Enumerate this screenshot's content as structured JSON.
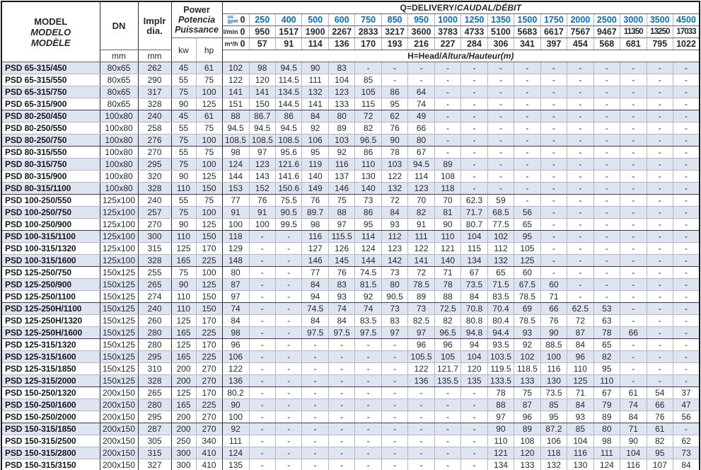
{
  "title": "PSD pump hydraulic performance table",
  "colors": {
    "accent_blue": "#0070c0",
    "row_shade": "#dee4f0",
    "border_dark": "#2b2d32",
    "border_light": "#b3b8c0"
  },
  "header": {
    "model_label": [
      "MODEL",
      "MODELO",
      "MODÈLE"
    ],
    "dn_label": "DN",
    "impeller_label": [
      "Implr",
      "dia."
    ],
    "power_label": [
      "Power",
      "Potencia",
      "Puissance"
    ],
    "unit_mm": "mm",
    "unit_kw": "kw",
    "unit_hp": "hp",
    "q_title_parts": [
      "Q=DELIVERY/",
      "CAUDAL/DÉBIT"
    ],
    "h_title_parts": [
      "H=Head/",
      "Altura/Hauteur",
      "(m)"
    ],
    "gpm_label": [
      "us",
      "gpm"
    ],
    "lmin_label": "l/min",
    "m3h_label": "m³/h",
    "gpm": [
      "0",
      "250",
      "400",
      "500",
      "600",
      "750",
      "850",
      "950",
      "1000",
      "1250",
      "1350",
      "1500",
      "1750",
      "2000",
      "2500",
      "3000",
      "3500",
      "4500"
    ],
    "lmin": [
      "0",
      "950",
      "1517",
      "1900",
      "2267",
      "2833",
      "3217",
      "3600",
      "3783",
      "4733",
      "5100",
      "5683",
      "6617",
      "7567",
      "9467",
      "11350",
      "13250",
      "17033"
    ],
    "m3h": [
      "0",
      "57",
      "91",
      "114",
      "136",
      "170",
      "193",
      "216",
      "227",
      "284",
      "306",
      "341",
      "397",
      "454",
      "568",
      "681",
      "795",
      "1022"
    ]
  },
  "group_end_rows": [
    4,
    7,
    11,
    14,
    17,
    20,
    23,
    27,
    30
  ],
  "rows": [
    {
      "model": "PSD 65-315/450",
      "dn": "80x65",
      "dia": "262",
      "kw": "45",
      "hp": "61",
      "h": [
        "102",
        "98",
        "94.5",
        "90",
        "83",
        "-",
        "-",
        "-",
        "-",
        "-",
        "-",
        "-",
        "-",
        "-",
        "-",
        "-",
        "-",
        "-"
      ]
    },
    {
      "model": "PSD 65-315/550",
      "dn": "80x65",
      "dia": "290",
      "kw": "55",
      "hp": "75",
      "h": [
        "122",
        "120",
        "114.5",
        "111",
        "104",
        "85",
        "-",
        "-",
        "-",
        "-",
        "-",
        "-",
        "-",
        "-",
        "-",
        "-",
        "-",
        "-"
      ]
    },
    {
      "model": "PSD 65-315/750",
      "dn": "80x65",
      "dia": "317",
      "kw": "75",
      "hp": "100",
      "h": [
        "141",
        "141",
        "134.5",
        "132",
        "123",
        "105",
        "86",
        "64",
        "-",
        "-",
        "-",
        "-",
        "-",
        "-",
        "-",
        "-",
        "-",
        "-"
      ]
    },
    {
      "model": "PSD 65-315/900",
      "dn": "80x65",
      "dia": "328",
      "kw": "90",
      "hp": "125",
      "h": [
        "151",
        "150",
        "144.5",
        "141",
        "133",
        "115",
        "95",
        "74",
        "-",
        "-",
        "-",
        "-",
        "-",
        "-",
        "-",
        "-",
        "-",
        "-"
      ]
    },
    {
      "model": "PSD 80-250/450",
      "dn": "100x80",
      "dia": "240",
      "kw": "45",
      "hp": "61",
      "h": [
        "88",
        "86.7",
        "86",
        "84",
        "80",
        "72",
        "62",
        "49",
        "-",
        "-",
        "-",
        "-",
        "-",
        "-",
        "-",
        "-",
        "-",
        "-"
      ]
    },
    {
      "model": "PSD 80-250/550",
      "dn": "100x80",
      "dia": "258",
      "kw": "55",
      "hp": "75",
      "h": [
        "94.5",
        "94.5",
        "94.5",
        "92",
        "89",
        "82",
        "76",
        "66",
        "-",
        "-",
        "-",
        "-",
        "-",
        "-",
        "-",
        "-",
        "-",
        "-"
      ]
    },
    {
      "model": "PSD 80-250/750",
      "dn": "100x80",
      "dia": "276",
      "kw": "75",
      "hp": "100",
      "h": [
        "108.5",
        "108.5",
        "108.5",
        "106",
        "103",
        "96.5",
        "90",
        "80",
        "-",
        "-",
        "-",
        "-",
        "-",
        "-",
        "-",
        "-",
        "-",
        "-"
      ]
    },
    {
      "model": "PSD 80-315/550",
      "dn": "100x80",
      "dia": "270",
      "kw": "55",
      "hp": "75",
      "h": [
        "98",
        "97",
        "95.6",
        "95",
        "92",
        "86",
        "78",
        "67",
        "-",
        "-",
        "-",
        "-",
        "-",
        "-",
        "-",
        "-",
        "-",
        "-"
      ]
    },
    {
      "model": "PSD 80-315/750",
      "dn": "100x80",
      "dia": "295",
      "kw": "75",
      "hp": "100",
      "h": [
        "124",
        "123",
        "121.6",
        "119",
        "116",
        "110",
        "103",
        "94.5",
        "89",
        "-",
        "-",
        "-",
        "-",
        "-",
        "-",
        "-",
        "-",
        "-"
      ]
    },
    {
      "model": "PSD 80-315/900",
      "dn": "100x80",
      "dia": "320",
      "kw": "90",
      "hp": "125",
      "h": [
        "144",
        "143",
        "141.6",
        "140",
        "137",
        "130",
        "122",
        "114",
        "108",
        "-",
        "-",
        "-",
        "-",
        "-",
        "-",
        "-",
        "-",
        "-"
      ]
    },
    {
      "model": "PSD 80-315/1100",
      "dn": "100x80",
      "dia": "328",
      "kw": "110",
      "hp": "150",
      "h": [
        "153",
        "152",
        "150.6",
        "149",
        "146",
        "140",
        "132",
        "123",
        "118",
        "-",
        "-",
        "-",
        "-",
        "-",
        "-",
        "-",
        "-",
        "-"
      ]
    },
    {
      "model": "PSD 100-250/550",
      "dn": "125x100",
      "dia": "240",
      "kw": "55",
      "hp": "75",
      "h": [
        "77",
        "76",
        "75.5",
        "76",
        "75",
        "73",
        "72",
        "70",
        "70",
        "62.3",
        "59",
        "-",
        "-",
        "-",
        "-",
        "-",
        "-",
        "-"
      ]
    },
    {
      "model": "PSD 100-250/750",
      "dn": "125x100",
      "dia": "257",
      "kw": "75",
      "hp": "100",
      "h": [
        "91",
        "91",
        "90.5",
        "89.7",
        "88",
        "86",
        "84",
        "82",
        "81",
        "71.7",
        "68.5",
        "56",
        "-",
        "-",
        "-",
        "-",
        "-",
        "-"
      ]
    },
    {
      "model": "PSD 100-250/900",
      "dn": "125x100",
      "dia": "270",
      "kw": "90",
      "hp": "125",
      "h": [
        "100",
        "100",
        "99.5",
        "98",
        "97",
        "95",
        "93",
        "91",
        "90",
        "80.7",
        "77.5",
        "65",
        "-",
        "-",
        "-",
        "-",
        "-",
        "-"
      ]
    },
    {
      "model": "PSD 100-315/1100",
      "dn": "125x100",
      "dia": "300",
      "kw": "110",
      "hp": "150",
      "h": [
        "118",
        "-",
        "-",
        "116",
        "115.5",
        "114",
        "112",
        "111",
        "110",
        "104",
        "102",
        "95",
        "-",
        "-",
        "-",
        "-",
        "-",
        "-"
      ]
    },
    {
      "model": "PSD 100-315/1320",
      "dn": "125x100",
      "dia": "315",
      "kw": "125",
      "hp": "170",
      "h": [
        "129",
        "-",
        "-",
        "127",
        "126",
        "124",
        "123",
        "122",
        "121",
        "115",
        "112",
        "105",
        "-",
        "-",
        "-",
        "-",
        "-",
        "-"
      ]
    },
    {
      "model": "PSD 100-315/1600",
      "dn": "125x100",
      "dia": "328",
      "kw": "165",
      "hp": "225",
      "h": [
        "148",
        "-",
        "-",
        "146",
        "145",
        "144",
        "142",
        "141",
        "140",
        "134",
        "132",
        "125",
        "-",
        "-",
        "-",
        "-",
        "-",
        "-"
      ]
    },
    {
      "model": "PSD 125-250/750",
      "dn": "150x125",
      "dia": "255",
      "kw": "75",
      "hp": "100",
      "h": [
        "80",
        "-",
        "-",
        "77",
        "76",
        "74.5",
        "73",
        "72",
        "71",
        "67",
        "65",
        "60",
        "-",
        "-",
        "-",
        "-",
        "-",
        "-"
      ]
    },
    {
      "model": "PSD 125-250/900",
      "dn": "150x125",
      "dia": "265",
      "kw": "90",
      "hp": "125",
      "h": [
        "87",
        "-",
        "-",
        "84",
        "83",
        "81.5",
        "80",
        "78.5",
        "78",
        "73.5",
        "71.5",
        "67.5",
        "60",
        "-",
        "-",
        "-",
        "-",
        "-"
      ]
    },
    {
      "model": "PSD 125-250/1100",
      "dn": "150x125",
      "dia": "274",
      "kw": "110",
      "hp": "150",
      "h": [
        "97",
        "-",
        "-",
        "94",
        "93",
        "92",
        "90.5",
        "89",
        "88",
        "84",
        "83.5",
        "78.5",
        "71",
        "-",
        "-",
        "-",
        "-",
        "-"
      ]
    },
    {
      "model": "PSD 125-250H/1100",
      "dn": "150x125",
      "dia": "240",
      "kw": "110",
      "hp": "150",
      "h": [
        "74",
        "-",
        "-",
        "74.5",
        "74",
        "74",
        "73",
        "73",
        "72.5",
        "70.8",
        "70.4",
        "69",
        "66",
        "62.5",
        "53",
        "-",
        "-",
        "-"
      ]
    },
    {
      "model": "PSD 125-250H/1320",
      "dn": "150x125",
      "dia": "260",
      "kw": "125",
      "hp": "170",
      "h": [
        "84",
        "-",
        "-",
        "84",
        "84",
        "83.5",
        "83",
        "82.5",
        "82",
        "80.8",
        "80.4",
        "78.5",
        "76",
        "72",
        "63",
        "-",
        "-",
        "-"
      ]
    },
    {
      "model": "PSD 125-250H/1600",
      "dn": "150x125",
      "dia": "280",
      "kw": "165",
      "hp": "225",
      "h": [
        "98",
        "-",
        "-",
        "97.5",
        "97.5",
        "97.5",
        "97",
        "97",
        "96.5",
        "94.8",
        "94.4",
        "93",
        "90",
        "87",
        "78",
        "66",
        "-",
        "-"
      ]
    },
    {
      "model": "PSD 125-315/1320",
      "dn": "150x125",
      "dia": "280",
      "kw": "125",
      "hp": "170",
      "h": [
        "96",
        "-",
        "-",
        "-",
        "-",
        "-",
        "-",
        "96",
        "96",
        "94",
        "93.5",
        "92",
        "88.5",
        "84",
        "65",
        "-",
        "-",
        "-"
      ]
    },
    {
      "model": "PSD 125-315/1600",
      "dn": "150x125",
      "dia": "295",
      "kw": "165",
      "hp": "225",
      "h": [
        "106",
        "-",
        "-",
        "-",
        "-",
        "-",
        "-",
        "105.5",
        "105",
        "104",
        "103.5",
        "102",
        "100",
        "96",
        "82",
        "-",
        "-",
        "-"
      ]
    },
    {
      "model": "PSD 125-315/1850",
      "dn": "150x125",
      "dia": "310",
      "kw": "200",
      "hp": "270",
      "h": [
        "122",
        "-",
        "-",
        "-",
        "-",
        "-",
        "-",
        "122",
        "121.7",
        "120",
        "119.5",
        "118.5",
        "116",
        "110",
        "95",
        "-",
        "-",
        "-"
      ]
    },
    {
      "model": "PSD 125-315/2000",
      "dn": "150x125",
      "dia": "328",
      "kw": "200",
      "hp": "270",
      "h": [
        "136",
        "-",
        "-",
        "-",
        "-",
        "-",
        "-",
        "136",
        "135.5",
        "135",
        "133.5",
        "133",
        "130",
        "125",
        "110",
        "-",
        "-",
        "-"
      ]
    },
    {
      "model": "PSD 150-250/1320",
      "dn": "200x150",
      "dia": "265",
      "kw": "125",
      "hp": "170",
      "h": [
        "80.2",
        "-",
        "-",
        "-",
        "-",
        "-",
        "-",
        "-",
        "-",
        "-",
        "78",
        "75",
        "73.5",
        "71",
        "67",
        "61",
        "54",
        "37"
      ]
    },
    {
      "model": "PSD 150-250/1600",
      "dn": "200x150",
      "dia": "280",
      "kw": "165",
      "hp": "225",
      "h": [
        "90",
        "-",
        "-",
        "-",
        "-",
        "-",
        "-",
        "-",
        "-",
        "-",
        "88",
        "87",
        "85",
        "84",
        "79",
        "74",
        "66",
        "47"
      ]
    },
    {
      "model": "PSD 150-250/2000",
      "dn": "200x150",
      "dia": "295",
      "kw": "200",
      "hp": "270",
      "h": [
        "100",
        "-",
        "-",
        "-",
        "-",
        "-",
        "-",
        "-",
        "-",
        "-",
        "97",
        "96",
        "95",
        "93",
        "89",
        "84",
        "76",
        "56"
      ]
    },
    {
      "model": "PSD 150-315/1850",
      "dn": "200x150",
      "dia": "287",
      "kw": "200",
      "hp": "270",
      "h": [
        "92",
        "-",
        "-",
        "-",
        "-",
        "-",
        "-",
        "-",
        "-",
        "-",
        "90",
        "89",
        "87.2",
        "85",
        "80",
        "71",
        "61",
        "-"
      ]
    },
    {
      "model": "PSD 150-315/2500",
      "dn": "200x150",
      "dia": "305",
      "kw": "250",
      "hp": "340",
      "h": [
        "111",
        "-",
        "-",
        "-",
        "-",
        "-",
        "-",
        "-",
        "-",
        "-",
        "110",
        "108",
        "106",
        "104",
        "98",
        "90",
        "82",
        "62"
      ]
    },
    {
      "model": "PSD 150-315/2800",
      "dn": "200x150",
      "dia": "315",
      "kw": "300",
      "hp": "410",
      "h": [
        "124",
        "-",
        "-",
        "-",
        "-",
        "-",
        "-",
        "-",
        "-",
        "-",
        "121",
        "120",
        "118",
        "116",
        "111",
        "104",
        "95",
        "73"
      ]
    },
    {
      "model": "PSD 150-315/3150",
      "dn": "200x150",
      "dia": "327",
      "kw": "300",
      "hp": "410",
      "h": [
        "135",
        "-",
        "-",
        "-",
        "-",
        "-",
        "-",
        "-",
        "-",
        "-",
        "134",
        "133",
        "132",
        "130",
        "124",
        "116",
        "107",
        "84"
      ]
    }
  ]
}
